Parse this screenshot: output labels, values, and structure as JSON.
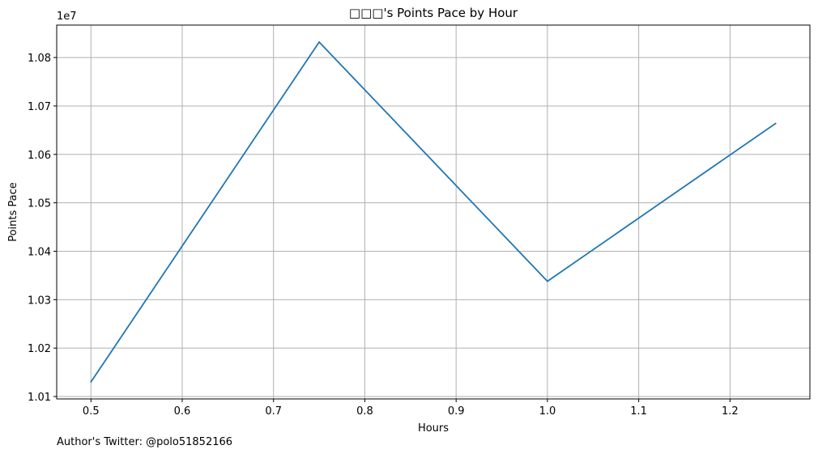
{
  "chart_data": {
    "type": "line",
    "title": "□□□'s Points Pace by Hour",
    "xlabel": "Hours",
    "ylabel": "Points Pace",
    "y_offset_label": "1e7",
    "xlim": [
      0.4625,
      1.2875
    ],
    "ylim": [
      10095000,
      10867000
    ],
    "x_ticks": [
      "0.5",
      "0.6",
      "0.7",
      "0.8",
      "0.9",
      "1.0",
      "1.1",
      "1.2"
    ],
    "x_tick_values": [
      0.5,
      0.6,
      0.7,
      0.8,
      0.9,
      1.0,
      1.1,
      1.2
    ],
    "y_ticks": [
      "1.01",
      "1.02",
      "1.03",
      "1.04",
      "1.05",
      "1.06",
      "1.07",
      "1.08"
    ],
    "y_tick_values": [
      10100000,
      10200000,
      10300000,
      10400000,
      10500000,
      10600000,
      10700000,
      10800000
    ],
    "grid": true,
    "series": [
      {
        "color": "#1f77b4",
        "x": [
          0.5,
          0.75,
          1.0,
          1.25
        ],
        "y": [
          10130000,
          10832000,
          10338000,
          10664000
        ]
      }
    ]
  },
  "footnote": "Author's Twitter: @polo51852166"
}
